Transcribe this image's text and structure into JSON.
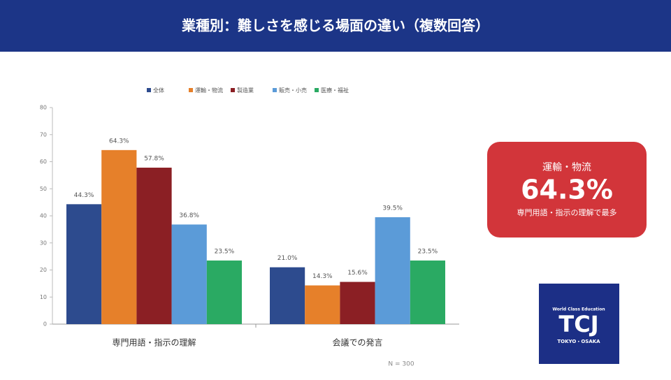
{
  "header": {
    "title": "業種別：難しさを感じる場面の違い（複数回答）"
  },
  "chart_data": {
    "type": "bar",
    "categories": [
      "専門用語・指示の理解",
      "会議での発言"
    ],
    "series": [
      {
        "name": "全体",
        "color": "#2d4b8e",
        "values": [
          44.3,
          21.0
        ],
        "value_labels": [
          "44.3%",
          "21.0%"
        ]
      },
      {
        "name": "運輸・物流",
        "color": "#e6802a",
        "values": [
          64.3,
          14.3
        ],
        "value_labels": [
          "64.3%",
          "14.3%"
        ]
      },
      {
        "name": "製造業",
        "color": "#8b1f24",
        "values": [
          57.8,
          15.6
        ],
        "value_labels": [
          "57.8%",
          "15.6%"
        ]
      },
      {
        "name": "販売・小売",
        "color": "#5b9bd8",
        "values": [
          36.8,
          39.5
        ],
        "value_labels": [
          "36.8%",
          "39.5%"
        ]
      },
      {
        "name": "医療・福祉",
        "color": "#2aaa63",
        "values": [
          23.5,
          23.5
        ],
        "value_labels": [
          "23.5%",
          "23.5%"
        ]
      }
    ],
    "ylim": [
      0,
      80
    ],
    "yticks": [
      0,
      10,
      20,
      30,
      40,
      50,
      60,
      70,
      80
    ],
    "grid": false,
    "legend": "top",
    "note": "N = 300"
  },
  "callout": {
    "label": "運輸・物流",
    "value": "64.3%",
    "caption": "専門用語・指示の理解で最多"
  },
  "logo": {
    "tagline": "World Class Education",
    "name": "TCJ",
    "place": "TOKYO・OSAKA"
  }
}
